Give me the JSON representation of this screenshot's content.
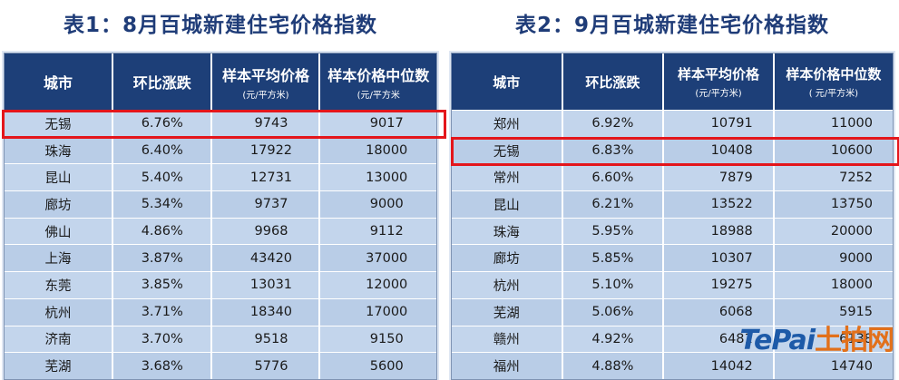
{
  "table1": {
    "title": "表1：8月百城新建住宅价格指数",
    "headers": {
      "city": "城市",
      "change": "环比涨跌",
      "avg": "样本平均价格",
      "avg_unit": "(元/平方米)",
      "median": "样本价格中位数",
      "median_unit": "(元/平方米"
    },
    "rows": [
      {
        "city": "无锡",
        "change": "6.76%",
        "avg": "9743",
        "median": "9017"
      },
      {
        "city": "珠海",
        "change": "6.40%",
        "avg": "17922",
        "median": "18000"
      },
      {
        "city": "昆山",
        "change": "5.40%",
        "avg": "12731",
        "median": "13000"
      },
      {
        "city": "廊坊",
        "change": "5.34%",
        "avg": "9737",
        "median": "9000"
      },
      {
        "city": "佛山",
        "change": "4.86%",
        "avg": "9968",
        "median": "9112"
      },
      {
        "city": "上海",
        "change": "3.87%",
        "avg": "43420",
        "median": "37000"
      },
      {
        "city": "东莞",
        "change": "3.85%",
        "avg": "13031",
        "median": "12000"
      },
      {
        "city": "杭州",
        "change": "3.71%",
        "avg": "18340",
        "median": "17000"
      },
      {
        "city": "济南",
        "change": "3.70%",
        "avg": "9518",
        "median": "9150"
      },
      {
        "city": "芜湖",
        "change": "3.68%",
        "avg": "5776",
        "median": "5600"
      }
    ]
  },
  "table2": {
    "title": "表2：9月百城新建住宅价格指数",
    "headers": {
      "city": "城市",
      "change": "环比涨跌",
      "avg": "样本平均价格",
      "avg_unit": "(元/平方米)",
      "median": "样本价格中位数",
      "median_unit": "( 元/平方米)"
    },
    "rows": [
      {
        "city": "郑州",
        "change": "6.92%",
        "avg": "10791",
        "median": "11000"
      },
      {
        "city": "无锡",
        "change": "6.83%",
        "avg": "10408",
        "median": "10600"
      },
      {
        "city": "常州",
        "change": "6.60%",
        "avg": "7879",
        "median": "7252"
      },
      {
        "city": "昆山",
        "change": "6.21%",
        "avg": "13522",
        "median": "13750"
      },
      {
        "city": "珠海",
        "change": "5.95%",
        "avg": "18988",
        "median": "20000"
      },
      {
        "city": "廊坊",
        "change": "5.85%",
        "avg": "10307",
        "median": "9000"
      },
      {
        "city": "杭州",
        "change": "5.10%",
        "avg": "19275",
        "median": "18000"
      },
      {
        "city": "芜湖",
        "change": "5.06%",
        "avg": "6068",
        "median": "5915"
      },
      {
        "city": "赣州",
        "change": "4.92%",
        "avg": "6481",
        "median": "6138"
      },
      {
        "city": "福州",
        "change": "4.88%",
        "avg": "14042",
        "median": "14740"
      }
    ]
  },
  "watermark": {
    "part1": "TePai",
    "part2": "土拍网"
  },
  "colors": {
    "header_bg": "#1d3f78",
    "title": "#1f3c78",
    "highlight": "#e4161b",
    "row_bg": "#bed1ea"
  }
}
